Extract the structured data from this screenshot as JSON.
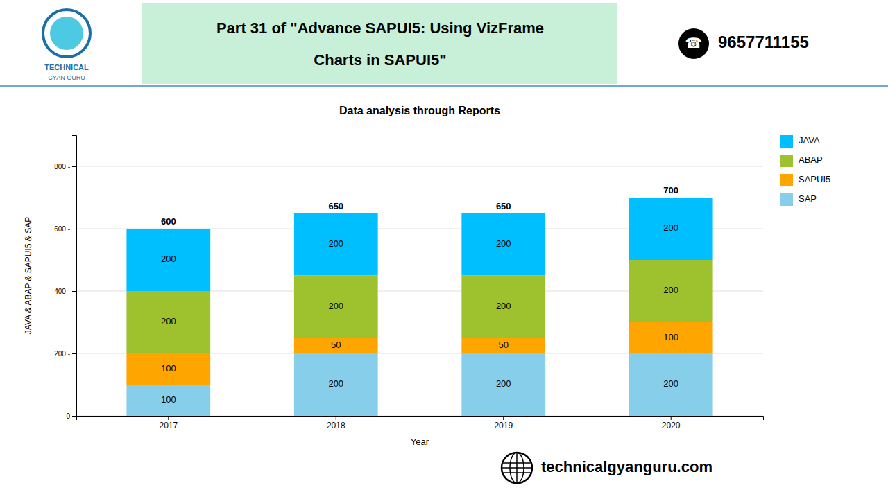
{
  "chart_data": {
    "type": "bar",
    "stacked": true,
    "title": "Data analysis through Reports",
    "xlabel": "Year",
    "ylabel": "JAVA & ABAP & SAPUI5 & SAP",
    "categories": [
      "2017",
      "2018",
      "2019",
      "2020"
    ],
    "series": [
      {
        "name": "SAP",
        "color": "#87CEEB",
        "values": [
          100,
          200,
          200,
          200
        ]
      },
      {
        "name": "SAPUI5",
        "color": "#FFA500",
        "values": [
          100,
          50,
          50,
          100
        ]
      },
      {
        "name": "ABAP",
        "color": "#9DC22D",
        "values": [
          200,
          200,
          200,
          200
        ]
      },
      {
        "name": "JAVA",
        "color": "#00BFFF",
        "values": [
          200,
          200,
          200,
          200
        ]
      }
    ],
    "totals": [
      600,
      650,
      650,
      700
    ],
    "ylim": [
      0,
      900
    ],
    "yticks": [
      0,
      {
        "value": 200,
        "label": "200 -"
      },
      {
        "value": 400,
        "label": "400 -"
      },
      {
        "value": 600,
        "label": "600 -"
      },
      {
        "value": 800,
        "label": "800 -"
      }
    ],
    "grid": true,
    "legend": "right",
    "data_labels": true,
    "annotations": [
      "TECHNICAL",
      "CYAN GURU",
      "Part 31 of \"Advance SAPUI5: Using VizFrame",
      "Charts in SAPUI5\"",
      "☎",
      "9657711155",
      "technicalgyanguru.com"
    ]
  }
}
